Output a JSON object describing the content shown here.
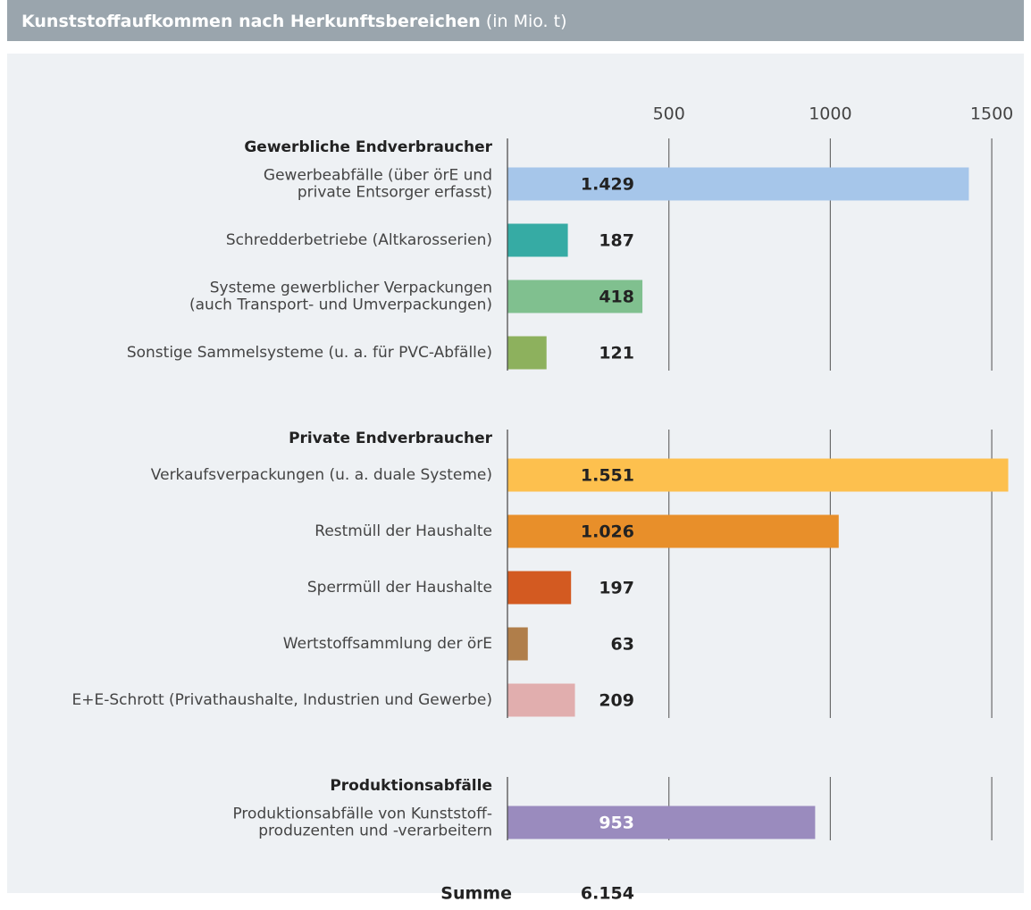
{
  "chart_data": {
    "type": "bar",
    "orientation": "horizontal",
    "title": "Kunststoffaufkommen nach Herkunftsbereichen",
    "subtitle": "(in Mio. t)",
    "xlim": [
      0,
      1580
    ],
    "xticks": [
      500,
      1000,
      1500
    ],
    "grid": true,
    "groups": [
      {
        "name": "Gewerbliche Endverbraucher",
        "categories": [
          "Gewerbeabfälle (über örE und\nprivate Entsorger erfasst)",
          "Schredderbetriebe (Altkarosserien)",
          "Systeme gewerblicher Verpackungen\n(auch Transport- und Umverpackungen)",
          "Sonstige Sammelsysteme (u. a. für PVC-Abfälle)"
        ],
        "values": [
          1429,
          187,
          418,
          121
        ],
        "value_labels": [
          "1.429",
          "187",
          "418",
          "121"
        ],
        "colors": [
          "#a6c6ea",
          "#36aba4",
          "#80c08f",
          "#8db15d"
        ]
      },
      {
        "name": "Private Endverbraucher",
        "categories": [
          "Verkaufsverpackungen (u. a. duale Systeme)",
          "Restmüll der Haushalte",
          "Sperrmüll der Haushalte",
          "Wertstoffsammlung der örE",
          "E+E-Schrott (Privathaushalte, Industrien und Gewerbe)"
        ],
        "values": [
          1551,
          1026,
          197,
          63,
          209
        ],
        "value_labels": [
          "1.551",
          "1.026",
          "197",
          "63",
          "209"
        ],
        "colors": [
          "#fdc04e",
          "#e88f2a",
          "#d35a21",
          "#b07e4a",
          "#e1aeae"
        ]
      },
      {
        "name": "Produktionsabfälle",
        "categories": [
          "Produktionsabfälle von Kunststoff-\nproduzenten und -verarbeitern"
        ],
        "values": [
          953
        ],
        "value_labels": [
          "953"
        ],
        "colors": [
          "#9a8bbe"
        ],
        "value_label_colors": [
          "#ffffff"
        ]
      }
    ],
    "total": {
      "label": "Summe",
      "value": 6154,
      "value_label": "6.154"
    }
  }
}
